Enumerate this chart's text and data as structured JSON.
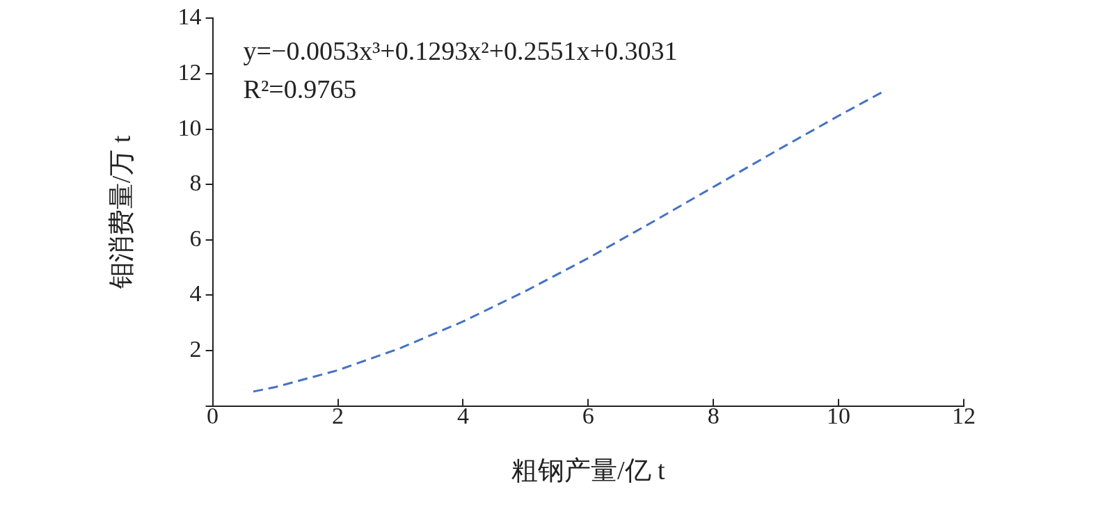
{
  "chart_data": {
    "type": "line",
    "xlabel": "粗钢产量/亿 t",
    "ylabel": "钼消费量/万 t",
    "annotations": [
      "y=−0.0053x³+0.1293x²+0.2551x+0.3031",
      "R²=0.9765"
    ],
    "x": [
      0.65,
      1,
      2,
      3,
      4,
      5,
      6,
      7,
      8,
      9,
      10,
      10.7
    ],
    "series": [
      {
        "color": "#4472c4",
        "values": [
          0.52,
          0.68,
          1.29,
          2.09,
          3.05,
          4.15,
          5.34,
          6.61,
          7.91,
          9.21,
          10.48,
          11.34
        ]
      }
    ],
    "xlim": [
      0,
      12
    ],
    "xticks": [
      0,
      2,
      4,
      6,
      8,
      10,
      12
    ],
    "ylim": [
      0,
      14
    ],
    "yticks": [
      {
        "value": 0,
        "label": null
      },
      2,
      4,
      6,
      8,
      10,
      12,
      14
    ],
    "grid": false,
    "legend": false,
    "marker": "none",
    "line_style": "dashed"
  }
}
